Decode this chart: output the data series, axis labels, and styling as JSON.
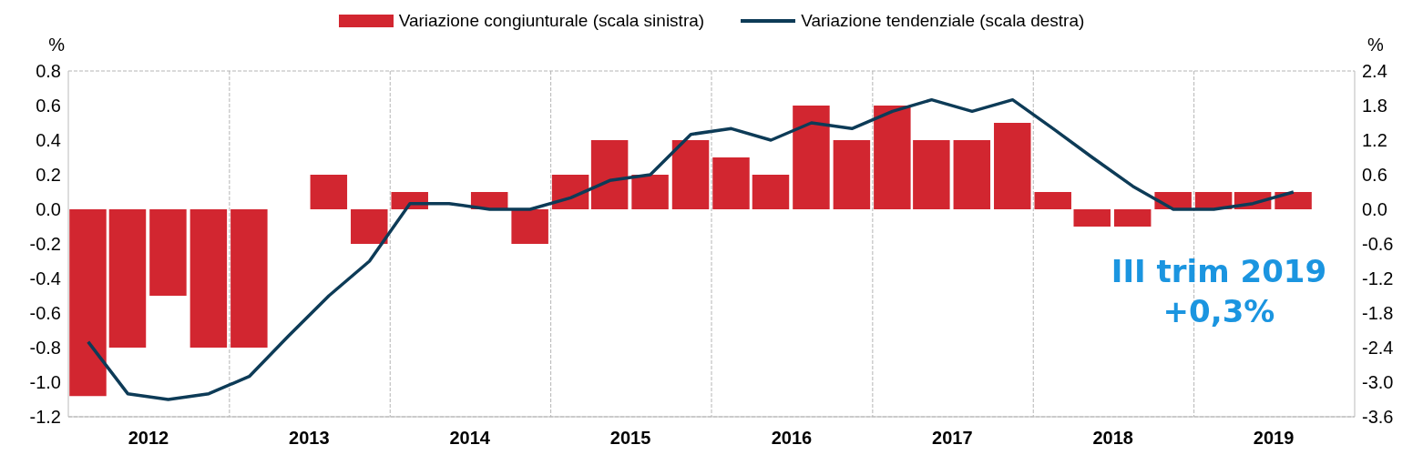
{
  "chart_data": {
    "type": "bar",
    "ylabel": "%",
    "y2label": "%",
    "x": [
      "2012-02-15",
      "2012-05-15",
      "2012-08-15",
      "2012-11-15",
      "2013-02-15",
      "2013-05-15",
      "2013-08-15",
      "2013-11-15",
      "2014-02-15",
      "2014-05-15",
      "2014-08-15",
      "2014-11-15",
      "2015-02-15",
      "2015-05-15",
      "2015-08-15",
      "2015-11-15",
      "2016-02-15",
      "2016-05-15",
      "2016-08-15",
      "2016-11-15",
      "2017-02-15",
      "2017-05-15",
      "2017-08-15",
      "2017-11-15",
      "2018-02-15",
      "2018-05-15",
      "2018-08-15",
      "2018-11-15",
      "2019-02-15",
      "2019-05-15",
      "2019-08-15"
    ],
    "xlim": [
      "2012-01-01",
      "2020-01-01"
    ],
    "xticks": [
      {
        "value": "2012-07-01",
        "label": "2012"
      },
      {
        "value": "2013-01-01",
        "label": null
      },
      {
        "value": "2013-07-01",
        "label": "2013"
      },
      {
        "value": "2014-01-01",
        "label": null
      },
      {
        "value": "2014-07-01",
        "label": "2014"
      },
      {
        "value": "2015-01-01",
        "label": null
      },
      {
        "value": "2015-07-01",
        "label": "2015"
      },
      {
        "value": "2016-01-01",
        "label": null
      },
      {
        "value": "2016-07-01",
        "label": "2016"
      },
      {
        "value": "2017-01-01",
        "label": null
      },
      {
        "value": "2017-07-01",
        "label": "2017"
      },
      {
        "value": "2018-01-01",
        "label": null
      },
      {
        "value": "2018-07-01",
        "label": "2018"
      },
      {
        "value": "2019-01-01",
        "label": null
      },
      {
        "value": "2019-07-01",
        "label": "2019"
      }
    ],
    "series": [
      {
        "name": "Variazione congiunturale (scala sinistra)",
        "type": "bar",
        "color": "#d22630",
        "values": [
          -1.08,
          -0.8,
          -0.5,
          -0.8,
          -0.8,
          0.0,
          0.2,
          -0.2,
          0.1,
          0.0,
          0.1,
          -0.2,
          0.2,
          0.4,
          0.2,
          0.4,
          0.3,
          0.2,
          0.6,
          0.4,
          0.6,
          0.4,
          0.4,
          0.5,
          0.1,
          -0.1,
          -0.1,
          0.1,
          0.1,
          0.1,
          0.1
        ]
      },
      {
        "name": "Variazione tendenziale (scala destra)",
        "type": "line",
        "axis": "y2",
        "color": "#0d3b57",
        "values": [
          -2.3,
          -3.2,
          -3.3,
          -3.2,
          -2.9,
          -2.2,
          -1.5,
          -0.9,
          0.1,
          0.1,
          0.0,
          0.0,
          0.2,
          0.5,
          0.6,
          1.3,
          1.4,
          1.2,
          1.5,
          1.4,
          1.7,
          1.9,
          1.7,
          1.9,
          1.4,
          0.9,
          0.4,
          0.0,
          0.0,
          0.1,
          0.3
        ]
      }
    ],
    "ylim": [
      -1.2,
      0.8
    ],
    "yticks": [
      {
        "value": -1.2,
        "label": "-1.2"
      },
      {
        "value": -1.0,
        "label": "-1.0"
      },
      {
        "value": -0.8,
        "label": "-0.8"
      },
      {
        "value": -0.6,
        "label": "-0.6"
      },
      {
        "value": -0.4,
        "label": "-0.4"
      },
      {
        "value": -0.2,
        "label": "-0.2"
      },
      {
        "value": 0,
        "label": "0.0"
      },
      {
        "value": 0.2,
        "label": "0.2"
      },
      {
        "value": 0.4,
        "label": "0.4"
      },
      {
        "value": 0.6,
        "label": "0.6"
      },
      {
        "value": 0.8,
        "label": "0.8"
      }
    ],
    "y2lim": [
      -3.6,
      2.4
    ],
    "y2ticks": [
      {
        "value": -3.6,
        "label": "-3.6"
      },
      {
        "value": -3.0,
        "label": "-3.0"
      },
      {
        "value": -2.4,
        "label": "-2.4"
      },
      {
        "value": -1.8,
        "label": "-1.8"
      },
      {
        "value": -1.2,
        "label": "-1.2"
      },
      {
        "value": -0.6,
        "label": "-0.6"
      },
      {
        "value": 0,
        "label": "0.0"
      },
      {
        "value": 0.6,
        "label": "0.6"
      },
      {
        "value": 1.2,
        "label": "1.2"
      },
      {
        "value": 1.8,
        "label": "1.8"
      },
      {
        "value": 2.4,
        "label": "2.4"
      }
    ],
    "grid": true,
    "legend": "top",
    "marker": "none",
    "line_style": "solid",
    "annotations": [
      "III trim 2019\n+0,3%"
    ]
  }
}
